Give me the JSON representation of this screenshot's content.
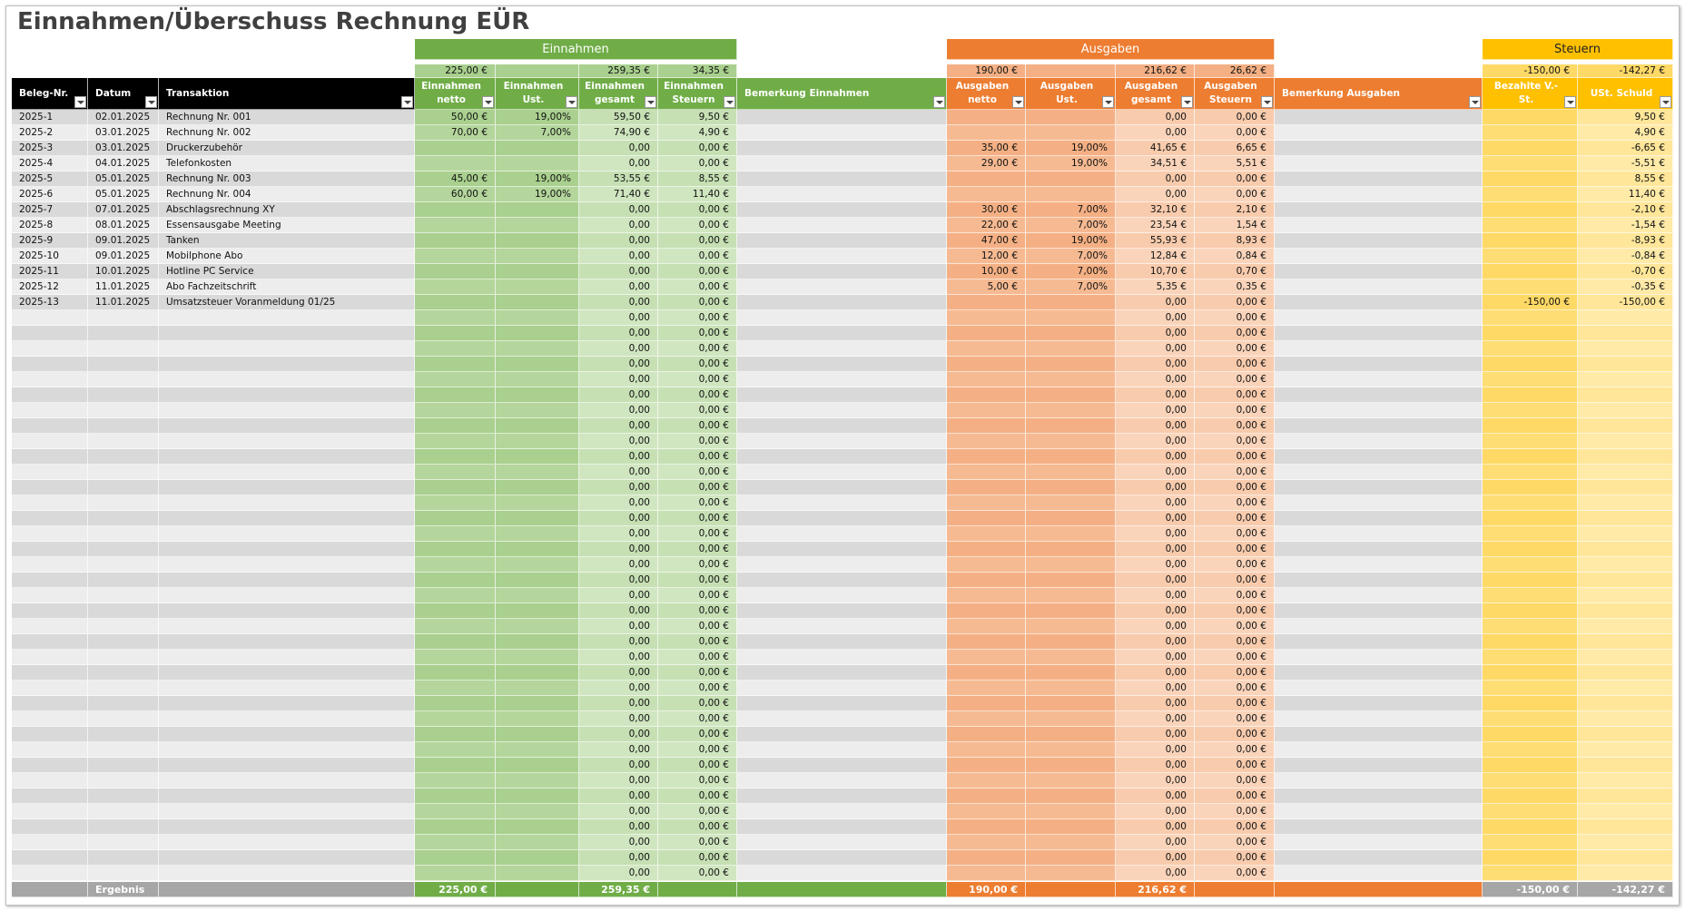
{
  "title": "Einnahmen/Überschuss Rechnung EÜR",
  "groups": [
    "Einnahmen",
    "Ausgaben",
    "Steuern"
  ],
  "totals": [
    null,
    null,
    null,
    "225,00 €",
    null,
    "259,35 €",
    "34,35 €",
    null,
    "190,00 €",
    null,
    "216,62 €",
    "26,62 €",
    null,
    "-150,00 €",
    "-142,27 €"
  ],
  "headers": [
    "Beleg-Nr.",
    "Datum",
    "Transaktion",
    "Einnahmen netto",
    "Einnahmen Ust.",
    "Einnahmen gesamt",
    "Einnahmen Steuern",
    "Bemerkung Einnahmen",
    "Ausgaben netto",
    "Ausgaben Ust.",
    "Ausgaben gesamt",
    "Ausgaben Steuern",
    "Bemerkung Ausgaben",
    "Bezahlte V.-St.",
    "USt. Schuld"
  ],
  "rows": [
    [
      "2025-1",
      "02.01.2025",
      "Rechnung Nr. 001",
      "50,00 €",
      "19,00%",
      "59,50 €",
      "9,50 €",
      null,
      null,
      null,
      "0,00",
      "0,00 €",
      null,
      null,
      "9,50 €"
    ],
    [
      "2025-2",
      "03.01.2025",
      "Rechnung Nr. 002",
      "70,00 €",
      "7,00%",
      "74,90 €",
      "4,90 €",
      null,
      null,
      null,
      "0,00",
      "0,00 €",
      null,
      null,
      "4,90 €"
    ],
    [
      "2025-3",
      "03.01.2025",
      "Druckerzubehör",
      null,
      null,
      "0,00",
      "0,00 €",
      null,
      "35,00 €",
      "19,00%",
      "41,65 €",
      "6,65 €",
      null,
      null,
      "-6,65 €"
    ],
    [
      "2025-4",
      "04.01.2025",
      "Telefonkosten",
      null,
      null,
      "0,00",
      "0,00 €",
      null,
      "29,00 €",
      "19,00%",
      "34,51 €",
      "5,51 €",
      null,
      null,
      "-5,51 €"
    ],
    [
      "2025-5",
      "05.01.2025",
      "Rechnung Nr. 003",
      "45,00 €",
      "19,00%",
      "53,55 €",
      "8,55 €",
      null,
      null,
      null,
      "0,00",
      "0,00 €",
      null,
      null,
      "8,55 €"
    ],
    [
      "2025-6",
      "05.01.2025",
      "Rechnung Nr. 004",
      "60,00 €",
      "19,00%",
      "71,40 €",
      "11,40 €",
      null,
      null,
      null,
      "0,00",
      "0,00 €",
      null,
      null,
      "11,40 €"
    ],
    [
      "2025-7",
      "07.01.2025",
      "Abschlagsrechnung XY",
      null,
      null,
      "0,00",
      "0,00 €",
      null,
      "30,00 €",
      "7,00%",
      "32,10 €",
      "2,10 €",
      null,
      null,
      "-2,10 €"
    ],
    [
      "2025-8",
      "08.01.2025",
      "Essensausgabe Meeting",
      null,
      null,
      "0,00",
      "0,00 €",
      null,
      "22,00 €",
      "7,00%",
      "23,54 €",
      "1,54 €",
      null,
      null,
      "-1,54 €"
    ],
    [
      "2025-9",
      "09.01.2025",
      "Tanken",
      null,
      null,
      "0,00",
      "0,00 €",
      null,
      "47,00 €",
      "19,00%",
      "55,93 €",
      "8,93 €",
      null,
      null,
      "-8,93 €"
    ],
    [
      "2025-10",
      "09.01.2025",
      "Mobilphone Abo",
      null,
      null,
      "0,00",
      "0,00 €",
      null,
      "12,00 €",
      "7,00%",
      "12,84 €",
      "0,84 €",
      null,
      null,
      "-0,84 €"
    ],
    [
      "2025-11",
      "10.01.2025",
      "Hotline PC Service",
      null,
      null,
      "0,00",
      "0,00 €",
      null,
      "10,00 €",
      "7,00%",
      "10,70 €",
      "0,70 €",
      null,
      null,
      "-0,70 €"
    ],
    [
      "2025-12",
      "11.01.2025",
      "Abo Fachzeitschrift",
      null,
      null,
      "0,00",
      "0,00 €",
      null,
      "5,00 €",
      "7,00%",
      "5,35 €",
      "0,35 €",
      null,
      null,
      "-0,35 €"
    ],
    [
      "2025-13",
      "11.01.2025",
      "Umsatzsteuer Voranmeldung 01/25",
      null,
      null,
      "0,00",
      "0,00 €",
      null,
      null,
      null,
      "0,00",
      "0,00 €",
      null,
      "-150,00 €",
      "-150,00 €"
    ],
    [
      null,
      null,
      null,
      null,
      null,
      "0,00",
      "0,00 €",
      null,
      null,
      null,
      "0,00",
      "0,00 €",
      null,
      null,
      null
    ],
    [
      null,
      null,
      null,
      null,
      null,
      "0,00",
      "0,00 €",
      null,
      null,
      null,
      "0,00",
      "0,00 €",
      null,
      null,
      null
    ],
    [
      null,
      null,
      null,
      null,
      null,
      "0,00",
      "0,00 €",
      null,
      null,
      null,
      "0,00",
      "0,00 €",
      null,
      null,
      null
    ],
    [
      null,
      null,
      null,
      null,
      null,
      "0,00",
      "0,00 €",
      null,
      null,
      null,
      "0,00",
      "0,00 €",
      null,
      null,
      null
    ],
    [
      null,
      null,
      null,
      null,
      null,
      "0,00",
      "0,00 €",
      null,
      null,
      null,
      "0,00",
      "0,00 €",
      null,
      null,
      null
    ],
    [
      null,
      null,
      null,
      null,
      null,
      "0,00",
      "0,00 €",
      null,
      null,
      null,
      "0,00",
      "0,00 €",
      null,
      null,
      null
    ],
    [
      null,
      null,
      null,
      null,
      null,
      "0,00",
      "0,00 €",
      null,
      null,
      null,
      "0,00",
      "0,00 €",
      null,
      null,
      null
    ],
    [
      null,
      null,
      null,
      null,
      null,
      "0,00",
      "0,00 €",
      null,
      null,
      null,
      "0,00",
      "0,00 €",
      null,
      null,
      null
    ],
    [
      null,
      null,
      null,
      null,
      null,
      "0,00",
      "0,00 €",
      null,
      null,
      null,
      "0,00",
      "0,00 €",
      null,
      null,
      null
    ],
    [
      null,
      null,
      null,
      null,
      null,
      "0,00",
      "0,00 €",
      null,
      null,
      null,
      "0,00",
      "0,00 €",
      null,
      null,
      null
    ],
    [
      null,
      null,
      null,
      null,
      null,
      "0,00",
      "0,00 €",
      null,
      null,
      null,
      "0,00",
      "0,00 €",
      null,
      null,
      null
    ],
    [
      null,
      null,
      null,
      null,
      null,
      "0,00",
      "0,00 €",
      null,
      null,
      null,
      "0,00",
      "0,00 €",
      null,
      null,
      null
    ],
    [
      null,
      null,
      null,
      null,
      null,
      "0,00",
      "0,00 €",
      null,
      null,
      null,
      "0,00",
      "0,00 €",
      null,
      null,
      null
    ],
    [
      null,
      null,
      null,
      null,
      null,
      "0,00",
      "0,00 €",
      null,
      null,
      null,
      "0,00",
      "0,00 €",
      null,
      null,
      null
    ],
    [
      null,
      null,
      null,
      null,
      null,
      "0,00",
      "0,00 €",
      null,
      null,
      null,
      "0,00",
      "0,00 €",
      null,
      null,
      null
    ],
    [
      null,
      null,
      null,
      null,
      null,
      "0,00",
      "0,00 €",
      null,
      null,
      null,
      "0,00",
      "0,00 €",
      null,
      null,
      null
    ],
    [
      null,
      null,
      null,
      null,
      null,
      "0,00",
      "0,00 €",
      null,
      null,
      null,
      "0,00",
      "0,00 €",
      null,
      null,
      null
    ],
    [
      null,
      null,
      null,
      null,
      null,
      "0,00",
      "0,00 €",
      null,
      null,
      null,
      "0,00",
      "0,00 €",
      null,
      null,
      null
    ],
    [
      null,
      null,
      null,
      null,
      null,
      "0,00",
      "0,00 €",
      null,
      null,
      null,
      "0,00",
      "0,00 €",
      null,
      null,
      null
    ],
    [
      null,
      null,
      null,
      null,
      null,
      "0,00",
      "0,00 €",
      null,
      null,
      null,
      "0,00",
      "0,00 €",
      null,
      null,
      null
    ],
    [
      null,
      null,
      null,
      null,
      null,
      "0,00",
      "0,00 €",
      null,
      null,
      null,
      "0,00",
      "0,00 €",
      null,
      null,
      null
    ],
    [
      null,
      null,
      null,
      null,
      null,
      "0,00",
      "0,00 €",
      null,
      null,
      null,
      "0,00",
      "0,00 €",
      null,
      null,
      null
    ],
    [
      null,
      null,
      null,
      null,
      null,
      "0,00",
      "0,00 €",
      null,
      null,
      null,
      "0,00",
      "0,00 €",
      null,
      null,
      null
    ],
    [
      null,
      null,
      null,
      null,
      null,
      "0,00",
      "0,00 €",
      null,
      null,
      null,
      "0,00",
      "0,00 €",
      null,
      null,
      null
    ],
    [
      null,
      null,
      null,
      null,
      null,
      "0,00",
      "0,00 €",
      null,
      null,
      null,
      "0,00",
      "0,00 €",
      null,
      null,
      null
    ],
    [
      null,
      null,
      null,
      null,
      null,
      "0,00",
      "0,00 €",
      null,
      null,
      null,
      "0,00",
      "0,00 €",
      null,
      null,
      null
    ],
    [
      null,
      null,
      null,
      null,
      null,
      "0,00",
      "0,00 €",
      null,
      null,
      null,
      "0,00",
      "0,00 €",
      null,
      null,
      null
    ],
    [
      null,
      null,
      null,
      null,
      null,
      "0,00",
      "0,00 €",
      null,
      null,
      null,
      "0,00",
      "0,00 €",
      null,
      null,
      null
    ],
    [
      null,
      null,
      null,
      null,
      null,
      "0,00",
      "0,00 €",
      null,
      null,
      null,
      "0,00",
      "0,00 €",
      null,
      null,
      null
    ],
    [
      null,
      null,
      null,
      null,
      null,
      "0,00",
      "0,00 €",
      null,
      null,
      null,
      "0,00",
      "0,00 €",
      null,
      null,
      null
    ],
    [
      null,
      null,
      null,
      null,
      null,
      "0,00",
      "0,00 €",
      null,
      null,
      null,
      "0,00",
      "0,00 €",
      null,
      null,
      null
    ],
    [
      null,
      null,
      null,
      null,
      null,
      "0,00",
      "0,00 €",
      null,
      null,
      null,
      "0,00",
      "0,00 €",
      null,
      null,
      null
    ],
    [
      null,
      null,
      null,
      null,
      null,
      "0,00",
      "0,00 €",
      null,
      null,
      null,
      "0,00",
      "0,00 €",
      null,
      null,
      null
    ],
    [
      null,
      null,
      null,
      null,
      null,
      "0,00",
      "0,00 €",
      null,
      null,
      null,
      "0,00",
      "0,00 €",
      null,
      null,
      null
    ],
    [
      null,
      null,
      null,
      null,
      null,
      "0,00",
      "0,00 €",
      null,
      null,
      null,
      "0,00",
      "0,00 €",
      null,
      null,
      null
    ],
    [
      null,
      null,
      null,
      null,
      null,
      "0,00",
      "0,00 €",
      null,
      null,
      null,
      "0,00",
      "0,00 €",
      null,
      null,
      null
    ],
    [
      null,
      null,
      null,
      null,
      null,
      "0,00",
      "0,00 €",
      null,
      null,
      null,
      "0,00",
      "0,00 €",
      null,
      null,
      null
    ]
  ],
  "footer": [
    null,
    "Ergebnis",
    null,
    "225,00 €",
    null,
    "259,35 €",
    null,
    null,
    "190,00 €",
    null,
    "216,62 €",
    null,
    null,
    "-150,00 €",
    "-142,27 €"
  ]
}
